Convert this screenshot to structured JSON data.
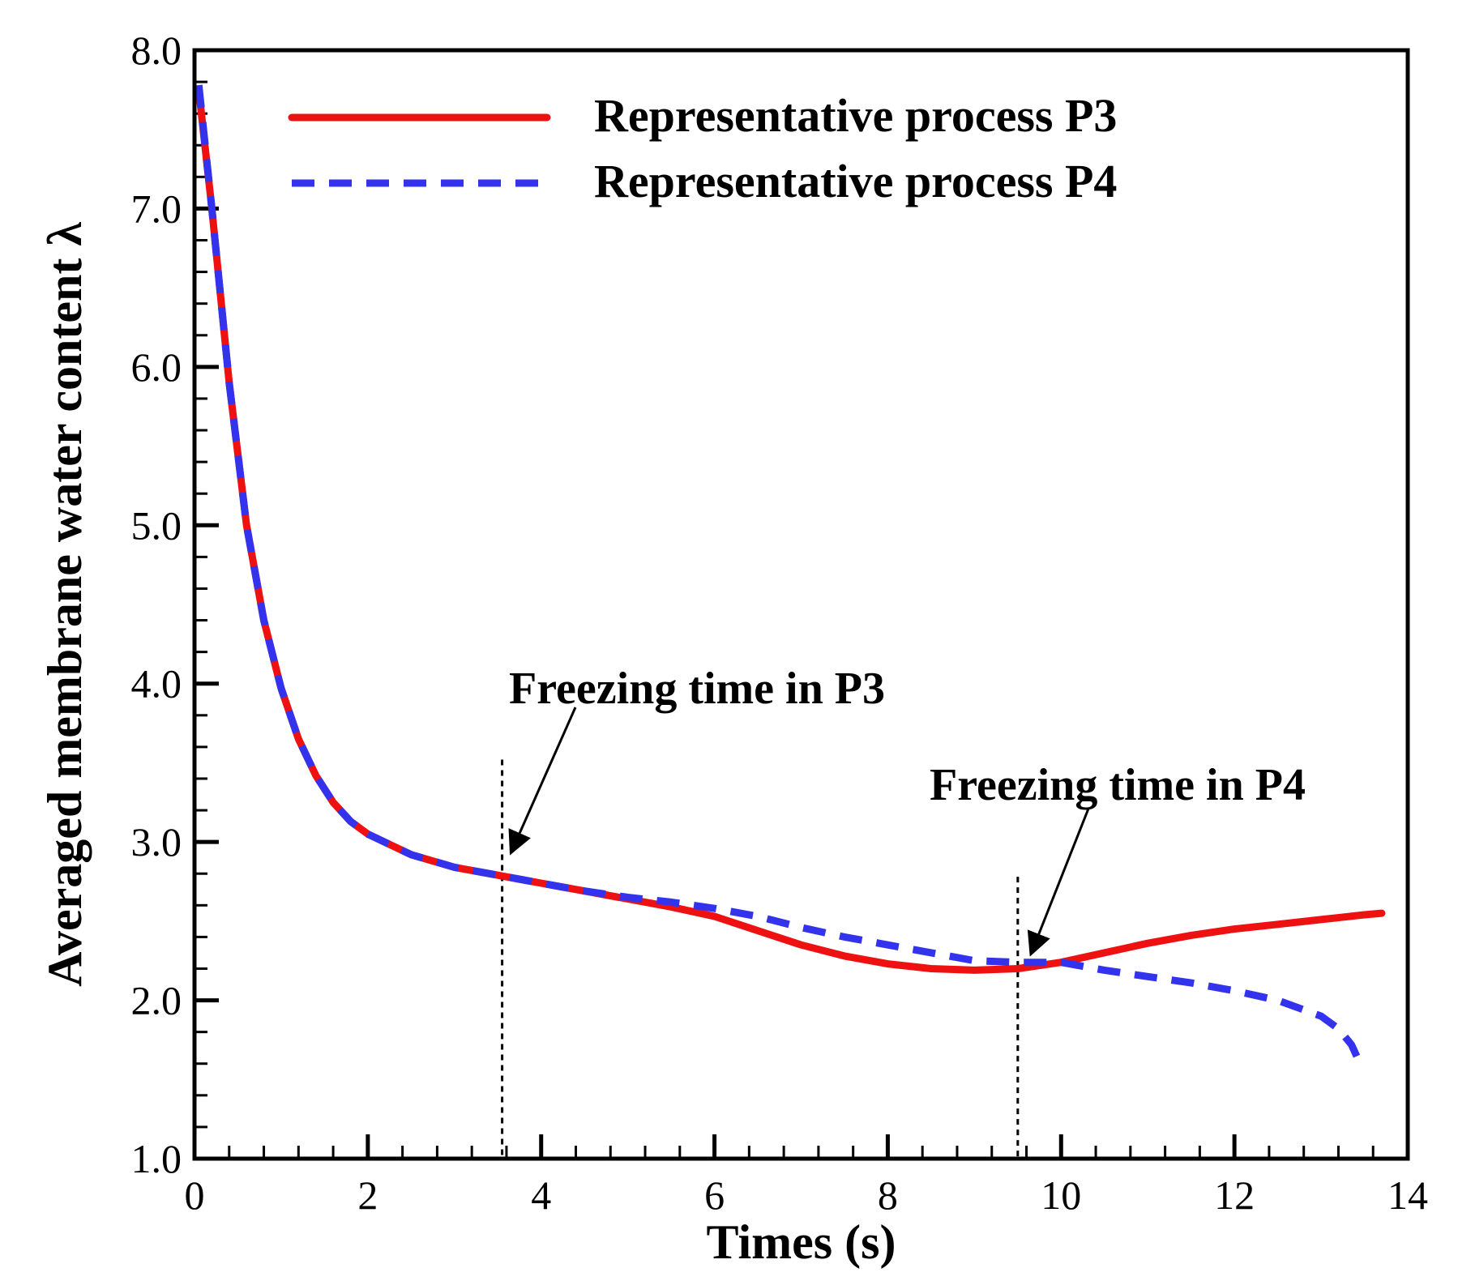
{
  "chart_data": {
    "type": "line",
    "title": "",
    "xlabel": "Times (s)",
    "ylabel": "Averaged membrane water content λ",
    "xlim": [
      0,
      14
    ],
    "ylim": [
      1.0,
      8.0
    ],
    "x_ticks": [
      0,
      2,
      4,
      6,
      8,
      10,
      12,
      14
    ],
    "x_tick_labels": [
      "0",
      "2",
      "4",
      "6",
      "8",
      "10",
      "12",
      "14"
    ],
    "y_ticks": [
      1.0,
      2.0,
      3.0,
      4.0,
      5.0,
      6.0,
      7.0,
      8.0
    ],
    "y_tick_labels": [
      "1.0",
      "2.0",
      "3.0",
      "4.0",
      "5.0",
      "6.0",
      "7.0",
      "8.0"
    ],
    "grid": false,
    "legend_position": "top-right",
    "series": [
      {
        "name": "Representative process P3",
        "color": "#ee1111",
        "style": "solid",
        "x": [
          0.05,
          0.2,
          0.4,
          0.6,
          0.8,
          1.0,
          1.2,
          1.4,
          1.6,
          1.8,
          2.0,
          2.5,
          3.0,
          3.5,
          4.0,
          4.5,
          5.0,
          5.5,
          6.0,
          6.5,
          7.0,
          7.5,
          8.0,
          8.5,
          9.0,
          9.5,
          10.0,
          10.5,
          11.0,
          11.5,
          12.0,
          12.5,
          13.0,
          13.5,
          13.7
        ],
        "y": [
          7.75,
          7.0,
          5.9,
          5.0,
          4.4,
          3.97,
          3.65,
          3.42,
          3.25,
          3.13,
          3.05,
          2.92,
          2.84,
          2.79,
          2.74,
          2.69,
          2.64,
          2.59,
          2.53,
          2.44,
          2.35,
          2.28,
          2.23,
          2.2,
          2.19,
          2.2,
          2.24,
          2.3,
          2.36,
          2.41,
          2.45,
          2.48,
          2.51,
          2.54,
          2.55
        ]
      },
      {
        "name": "Representative process P4",
        "color": "#3333ee",
        "style": "dashed",
        "x": [
          0.05,
          0.2,
          0.4,
          0.6,
          0.8,
          1.0,
          1.2,
          1.4,
          1.6,
          1.8,
          2.0,
          2.5,
          3.0,
          3.5,
          4.0,
          4.5,
          5.0,
          5.5,
          6.0,
          6.5,
          7.0,
          7.5,
          8.0,
          8.5,
          9.0,
          9.5,
          10.0,
          10.5,
          11.0,
          11.5,
          12.0,
          12.5,
          13.0,
          13.2,
          13.35,
          13.45
        ],
        "y": [
          7.78,
          7.0,
          5.9,
          5.0,
          4.4,
          3.97,
          3.65,
          3.42,
          3.25,
          3.13,
          3.05,
          2.92,
          2.84,
          2.79,
          2.74,
          2.69,
          2.65,
          2.62,
          2.58,
          2.53,
          2.46,
          2.4,
          2.35,
          2.3,
          2.25,
          2.24,
          2.24,
          2.19,
          2.15,
          2.11,
          2.06,
          2.0,
          1.9,
          1.82,
          1.72,
          1.6
        ]
      }
    ],
    "annotations": [
      {
        "text": "Freezing time in P3",
        "line_x": 3.55,
        "line_y": [
          1.0,
          3.52
        ],
        "arrow_to": [
          3.65,
          2.93
        ]
      },
      {
        "text": "Freezing time in P4",
        "line_x": 9.5,
        "line_y": [
          1.0,
          2.78
        ],
        "arrow_to": [
          9.65,
          2.29
        ]
      }
    ]
  }
}
